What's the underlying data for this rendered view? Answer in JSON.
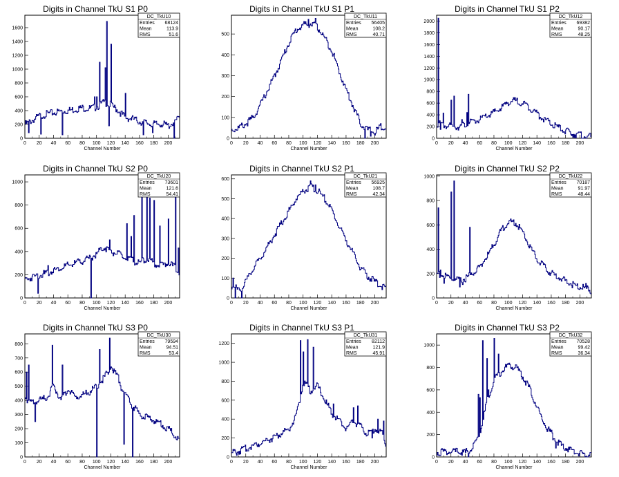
{
  "x_axis_label": "Channel Number",
  "x_ticks": [
    0,
    20,
    40,
    60,
    80,
    100,
    120,
    140,
    160,
    180,
    200
  ],
  "stat_labels": {
    "entries": "Entries",
    "mean": "Mean",
    "rms": "RMS"
  },
  "line_color": "#000080",
  "chart_data": [
    {
      "type": "histogram",
      "title": "Digits in Channel TkU S1 P0",
      "stats_name": "DC_TkU10",
      "entries": "68124",
      "mean": "113.9",
      "rms": "51.6",
      "xlabel": "Channel Number",
      "xlim": [
        0,
        216
      ],
      "ylim": [
        0,
        1780
      ],
      "yticks": [
        0,
        200,
        400,
        600,
        800,
        1000,
        1200,
        1400,
        1600
      ],
      "x": [
        0,
        10,
        20,
        30,
        40,
        50,
        60,
        70,
        80,
        90,
        100,
        110,
        120,
        130,
        140,
        150,
        160,
        170,
        180,
        190,
        200,
        210,
        216
      ],
      "y": [
        200,
        260,
        320,
        350,
        370,
        390,
        400,
        420,
        440,
        430,
        450,
        520,
        480,
        400,
        300,
        280,
        240,
        220,
        200,
        210,
        180,
        250,
        300
      ],
      "spikes": [
        [
          5,
          80
        ],
        [
          22,
          60
        ],
        [
          52,
          50
        ],
        [
          97,
          600
        ],
        [
          100,
          600
        ],
        [
          104,
          1100
        ],
        [
          112,
          1020
        ],
        [
          114,
          1690
        ],
        [
          117,
          180
        ],
        [
          120,
          1360
        ],
        [
          122,
          500
        ],
        [
          140,
          650
        ],
        [
          165,
          50
        ],
        [
          178,
          80
        ],
        [
          208,
          0
        ]
      ]
    },
    {
      "type": "histogram",
      "title": "Digits in Channel TkU S1 P1",
      "stats_name": "DC_TkU11",
      "entries": "56405",
      "mean": "108.2",
      "rms": "40.71",
      "xlabel": "Channel Number",
      "xlim": [
        0,
        216
      ],
      "ylim": [
        0,
        590
      ],
      "yticks": [
        0,
        100,
        200,
        300,
        400,
        500
      ],
      "x": [
        0,
        10,
        20,
        30,
        40,
        50,
        60,
        70,
        80,
        90,
        100,
        110,
        120,
        130,
        140,
        150,
        160,
        170,
        180,
        190,
        200,
        210,
        216
      ],
      "y": [
        40,
        50,
        70,
        100,
        160,
        230,
        300,
        380,
        460,
        520,
        540,
        550,
        530,
        480,
        420,
        320,
        230,
        150,
        70,
        40,
        30,
        60,
        50
      ],
      "spikes": [
        [
          101,
          560
        ],
        [
          107,
          570
        ],
        [
          117,
          575
        ],
        [
          186,
          0
        ],
        [
          194,
          10
        ],
        [
          200,
          15
        ]
      ]
    },
    {
      "type": "histogram",
      "title": "Digits in Channel TkU S1 P2",
      "stats_name": "DC_TkU12",
      "entries": "69382",
      "mean": "90.17",
      "rms": "48.25",
      "xlabel": "Channel Number",
      "xlim": [
        0,
        216
      ],
      "ylim": [
        0,
        2100
      ],
      "yticks": [
        0,
        200,
        400,
        600,
        800,
        1000,
        1200,
        1400,
        1600,
        1800,
        2000
      ],
      "x": [
        0,
        10,
        20,
        30,
        40,
        50,
        60,
        70,
        80,
        90,
        100,
        110,
        120,
        130,
        140,
        150,
        160,
        170,
        180,
        190,
        200,
        210,
        216
      ],
      "y": [
        250,
        220,
        200,
        200,
        230,
        280,
        320,
        380,
        440,
        520,
        620,
        640,
        600,
        520,
        420,
        320,
        240,
        180,
        120,
        80,
        50,
        30,
        20
      ],
      "spikes": [
        [
          2,
          2050
        ],
        [
          5,
          150
        ],
        [
          9,
          430
        ],
        [
          20,
          650
        ],
        [
          24,
          720
        ],
        [
          35,
          320
        ],
        [
          42,
          440
        ],
        [
          44,
          750
        ]
      ]
    },
    {
      "type": "histogram",
      "title": "Digits in Channel TkU S2 P0",
      "stats_name": "DC_TkU20",
      "entries": "73601",
      "mean": "121.6",
      "rms": "54.41",
      "xlabel": "Channel Number",
      "xlim": [
        0,
        216
      ],
      "ylim": [
        0,
        1060
      ],
      "yticks": [
        0,
        200,
        400,
        600,
        800,
        1000
      ],
      "x": [
        0,
        10,
        20,
        30,
        40,
        50,
        60,
        70,
        80,
        90,
        100,
        110,
        120,
        130,
        140,
        150,
        160,
        170,
        180,
        190,
        200,
        210,
        216
      ],
      "y": [
        160,
        180,
        200,
        210,
        240,
        260,
        280,
        300,
        320,
        340,
        380,
        440,
        400,
        380,
        340,
        320,
        300,
        340,
        300,
        280,
        300,
        260,
        220
      ],
      "spikes": [
        [
          18,
          40
        ],
        [
          32,
          280
        ],
        [
          92,
          0
        ],
        [
          118,
          500
        ],
        [
          142,
          640
        ],
        [
          148,
          530
        ],
        [
          152,
          710
        ],
        [
          163,
          880
        ],
        [
          170,
          1010
        ],
        [
          174,
          860
        ],
        [
          180,
          840
        ],
        [
          188,
          620
        ],
        [
          200,
          680
        ],
        [
          210,
          950
        ],
        [
          214,
          430
        ]
      ]
    },
    {
      "type": "histogram",
      "title": "Digits in Channel TkU S2 P1",
      "stats_name": "DC_TkU21",
      "entries": "56925",
      "mean": "108.7",
      "rms": "42.34",
      "xlabel": "Channel Number",
      "xlim": [
        0,
        216
      ],
      "ylim": [
        0,
        620
      ],
      "yticks": [
        0,
        100,
        200,
        300,
        400,
        500,
        600
      ],
      "x": [
        0,
        10,
        20,
        30,
        40,
        50,
        60,
        70,
        80,
        90,
        100,
        110,
        120,
        130,
        140,
        150,
        160,
        170,
        180,
        190,
        200,
        210,
        216
      ],
      "y": [
        60,
        40,
        80,
        150,
        200,
        260,
        320,
        380,
        440,
        500,
        540,
        560,
        540,
        500,
        440,
        360,
        290,
        220,
        150,
        110,
        80,
        60,
        50
      ],
      "spikes": [
        [
          2,
          100
        ],
        [
          5,
          0
        ],
        [
          14,
          0
        ],
        [
          110,
          590
        ],
        [
          117,
          570
        ]
      ]
    },
    {
      "type": "histogram",
      "title": "Digits in Channel TkU S2 P2",
      "stats_name": "DC_TkU22",
      "entries": "70187",
      "mean": "91.97",
      "rms": "48.44",
      "xlabel": "Channel Number",
      "xlim": [
        0,
        216
      ],
      "ylim": [
        0,
        1010
      ],
      "yticks": [
        0,
        200,
        400,
        600,
        800,
        1000
      ],
      "x": [
        0,
        10,
        20,
        30,
        40,
        50,
        60,
        70,
        80,
        90,
        100,
        110,
        120,
        130,
        140,
        150,
        160,
        170,
        180,
        190,
        200,
        210,
        216
      ],
      "y": [
        200,
        180,
        160,
        140,
        160,
        200,
        260,
        340,
        440,
        560,
        620,
        620,
        540,
        420,
        320,
        250,
        200,
        170,
        140,
        110,
        90,
        70,
        60
      ],
      "spikes": [
        [
          2,
          740
        ],
        [
          5,
          230
        ],
        [
          10,
          120
        ],
        [
          20,
          870
        ],
        [
          24,
          960
        ],
        [
          32,
          90
        ],
        [
          36,
          110
        ],
        [
          46,
          580
        ],
        [
          208,
          120
        ],
        [
          214,
          40
        ]
      ]
    },
    {
      "type": "histogram",
      "title": "Digits in Channel TkU S3 P0",
      "stats_name": "DC_TkU30",
      "entries": "79594",
      "mean": "94.51",
      "rms": "53.4",
      "xlabel": "Channel Number",
      "xlim": [
        0,
        216
      ],
      "ylim": [
        0,
        870
      ],
      "yticks": [
        0,
        100,
        200,
        300,
        400,
        500,
        600,
        700,
        800
      ],
      "x": [
        0,
        10,
        20,
        30,
        40,
        50,
        60,
        70,
        80,
        90,
        100,
        110,
        120,
        130,
        140,
        150,
        160,
        170,
        180,
        190,
        200,
        210,
        216
      ],
      "y": [
        420,
        380,
        400,
        420,
        500,
        400,
        480,
        420,
        440,
        460,
        500,
        560,
        640,
        560,
        440,
        360,
        300,
        280,
        260,
        230,
        200,
        150,
        110
      ],
      "spikes": [
        [
          2,
          600
        ],
        [
          5,
          650
        ],
        [
          14,
          250
        ],
        [
          38,
          790
        ],
        [
          52,
          650
        ],
        [
          100,
          0
        ],
        [
          104,
          760
        ],
        [
          118,
          840
        ],
        [
          134,
          470
        ],
        [
          138,
          90
        ],
        [
          150,
          0
        ]
      ]
    },
    {
      "type": "histogram",
      "title": "Digits in Channel TkU S3 P1",
      "stats_name": "DC_TkU31",
      "entries": "82112",
      "mean": "121.9",
      "rms": "45.91",
      "xlabel": "Channel Number",
      "xlim": [
        0,
        216
      ],
      "ylim": [
        0,
        1300
      ],
      "yticks": [
        0,
        200,
        400,
        600,
        800,
        1000,
        1200
      ],
      "x": [
        0,
        10,
        20,
        30,
        40,
        50,
        60,
        70,
        80,
        90,
        100,
        110,
        120,
        130,
        140,
        150,
        160,
        170,
        180,
        190,
        200,
        210,
        216
      ],
      "y": [
        40,
        60,
        90,
        120,
        150,
        180,
        210,
        250,
        300,
        420,
        800,
        700,
        750,
        600,
        460,
        380,
        300,
        380,
        320,
        240,
        300,
        250,
        120
      ],
      "spikes": [
        [
          96,
          1230
        ],
        [
          100,
          1110
        ],
        [
          106,
          1240
        ],
        [
          114,
          1160
        ],
        [
          142,
          560
        ],
        [
          170,
          520
        ],
        [
          176,
          540
        ],
        [
          196,
          200
        ],
        [
          204,
          400
        ],
        [
          212,
          380
        ]
      ]
    },
    {
      "type": "histogram",
      "title": "Digits in Channel TkU S3 P2",
      "stats_name": "DC_TkU32",
      "entries": "70528",
      "mean": "99.42",
      "rms": "36.34",
      "xlabel": "Channel Number",
      "xlim": [
        0,
        216
      ],
      "ylim": [
        0,
        1100
      ],
      "yticks": [
        0,
        200,
        400,
        600,
        800,
        1000
      ],
      "x": [
        0,
        10,
        20,
        30,
        40,
        50,
        60,
        70,
        80,
        90,
        100,
        110,
        120,
        130,
        140,
        150,
        160,
        170,
        180,
        190,
        200,
        210,
        216
      ],
      "y": [
        40,
        50,
        40,
        50,
        40,
        80,
        200,
        500,
        700,
        760,
        820,
        800,
        720,
        600,
        440,
        300,
        200,
        120,
        80,
        50,
        30,
        20,
        10
      ],
      "spikes": [
        [
          44,
          0
        ],
        [
          58,
          560
        ],
        [
          60,
          530
        ],
        [
          64,
          1040
        ],
        [
          70,
          880
        ],
        [
          72,
          600
        ],
        [
          80,
          1060
        ],
        [
          86,
          920
        ],
        [
          160,
          240
        ],
        [
          166,
          80
        ]
      ]
    }
  ]
}
